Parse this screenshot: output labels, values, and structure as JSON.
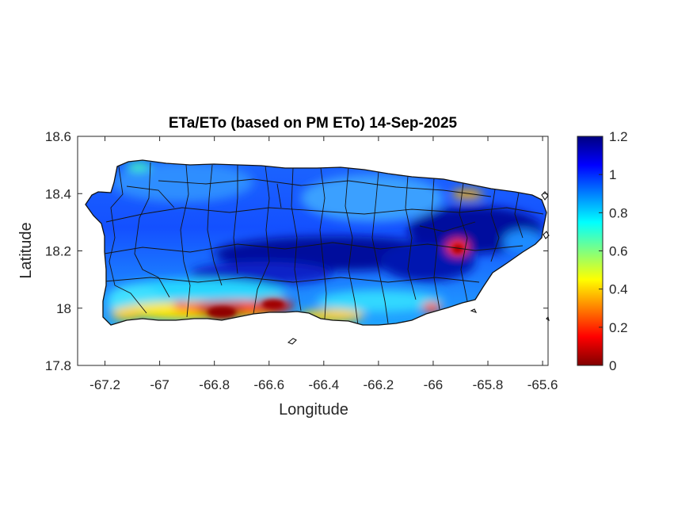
{
  "title": "ETa/ETo (based on PM ETo) 14-Sep-2025",
  "xlabel": "Longitude",
  "ylabel": "Latitude",
  "x_ticks": [
    "-67.2",
    "-67",
    "-66.8",
    "-66.6",
    "-66.4",
    "-66.2",
    "-66",
    "-65.8",
    "-65.6"
  ],
  "y_ticks": [
    "18.6",
    "18.4",
    "18.2",
    "18",
    "17.8"
  ],
  "colorbar": {
    "ticks": [
      "1.2",
      "1",
      "0.8",
      "0.6",
      "0.4",
      "0.2",
      "0"
    ],
    "range": [
      0,
      1.2
    ],
    "colormap": "jet",
    "colors": [
      "#800000",
      "#ff0000",
      "#ff8000",
      "#ffff00",
      "#80ff80",
      "#00ffff",
      "#0080ff",
      "#0000ff",
      "#000080"
    ]
  },
  "map": {
    "region": "Puerto Rico",
    "lon_range": [
      -67.3,
      -65.58
    ],
    "lat_range": [
      17.8,
      18.6
    ],
    "field": "ETa/ETo ratio",
    "low_value_zones": [
      "south coast",
      "southeast interior"
    ],
    "high_value_zones": [
      "central interior",
      "east"
    ]
  }
}
